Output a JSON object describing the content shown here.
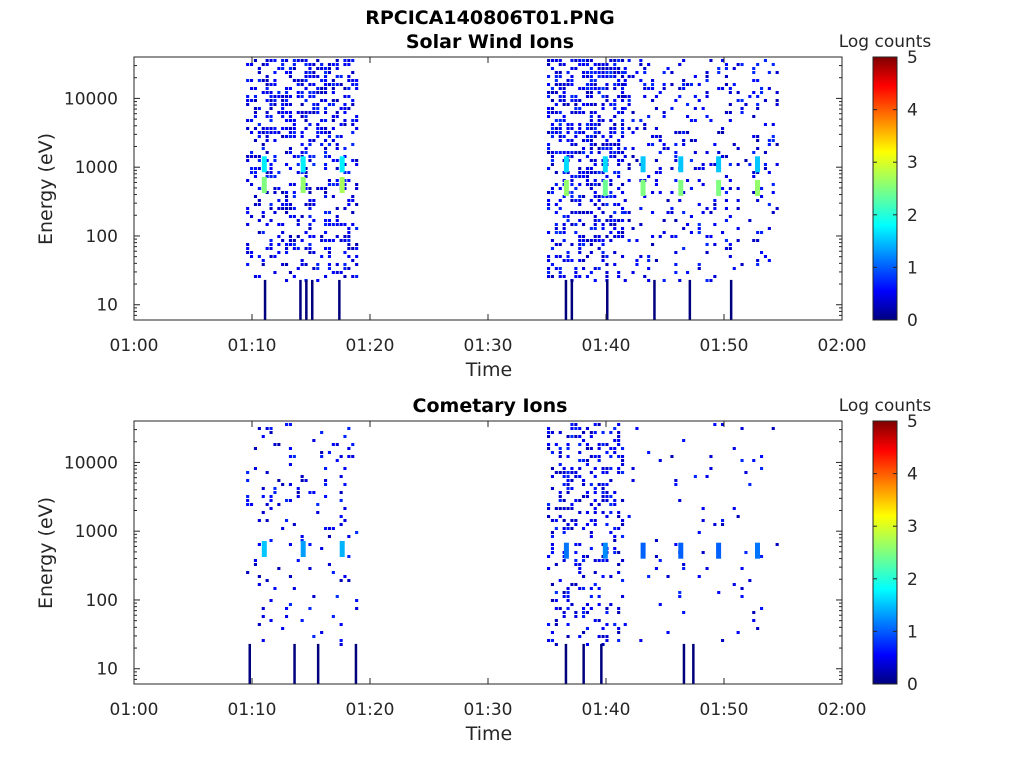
{
  "figure": {
    "title": "RPCICA140806T01.PNG"
  },
  "chart_data": [
    {
      "type": "heatmap",
      "title": "Solar Wind Ions",
      "xlabel": "Time",
      "ylabel": "Energy (eV)",
      "x_range": [
        "01:00",
        "02:00"
      ],
      "x_ticks": [
        "01:00",
        "01:10",
        "01:20",
        "01:30",
        "01:40",
        "01:50",
        "02:00"
      ],
      "y_scale": "log",
      "y_range": [
        6,
        40000
      ],
      "y_ticks": [
        "10",
        "100",
        "1000",
        "10000"
      ],
      "colorbar": {
        "label": "Log counts",
        "range": [
          0,
          5
        ],
        "ticks": [
          "0",
          "1",
          "2",
          "3",
          "4",
          "5"
        ],
        "colormap": "jet"
      },
      "bursts": [
        {
          "start_min": 9.5,
          "end_min": 18.8,
          "density": 0.45
        },
        {
          "start_min": 35.0,
          "end_min": 41.5,
          "density": 0.6
        },
        {
          "start_min": 41.5,
          "end_min": 54.5,
          "density": 0.18
        }
      ],
      "peaks": [
        {
          "time_min": 11.0,
          "energy_eV": 550,
          "log_counts": 2.5
        },
        {
          "time_min": 11.0,
          "energy_eV": 1100,
          "log_counts": 1.8
        },
        {
          "time_min": 14.3,
          "energy_eV": 550,
          "log_counts": 2.6
        },
        {
          "time_min": 14.3,
          "energy_eV": 1100,
          "log_counts": 1.8
        },
        {
          "time_min": 17.6,
          "energy_eV": 550,
          "log_counts": 2.7
        },
        {
          "time_min": 17.6,
          "energy_eV": 1100,
          "log_counts": 1.8
        },
        {
          "time_min": 36.6,
          "energy_eV": 500,
          "log_counts": 2.6
        },
        {
          "time_min": 36.6,
          "energy_eV": 1100,
          "log_counts": 1.7
        },
        {
          "time_min": 39.9,
          "energy_eV": 500,
          "log_counts": 2.4
        },
        {
          "time_min": 39.9,
          "energy_eV": 1100,
          "log_counts": 1.7
        },
        {
          "time_min": 43.1,
          "energy_eV": 500,
          "log_counts": 2.5
        },
        {
          "time_min": 43.1,
          "energy_eV": 1100,
          "log_counts": 1.6
        },
        {
          "time_min": 46.3,
          "energy_eV": 500,
          "log_counts": 2.5
        },
        {
          "time_min": 46.3,
          "energy_eV": 1100,
          "log_counts": 1.6
        },
        {
          "time_min": 49.5,
          "energy_eV": 500,
          "log_counts": 2.5
        },
        {
          "time_min": 49.5,
          "energy_eV": 1100,
          "log_counts": 1.6
        },
        {
          "time_min": 52.8,
          "energy_eV": 500,
          "log_counts": 2.6
        },
        {
          "time_min": 52.8,
          "energy_eV": 1100,
          "log_counts": 1.6
        }
      ],
      "low_energy_streaks": [
        {
          "time_min": 11.0,
          "energy_eV": 10
        },
        {
          "time_min": 14.0,
          "energy_eV": 10
        },
        {
          "time_min": 14.5,
          "energy_eV": 10
        },
        {
          "time_min": 15.0,
          "energy_eV": 10
        },
        {
          "time_min": 17.3,
          "energy_eV": 10
        },
        {
          "time_min": 36.5,
          "energy_eV": 10
        },
        {
          "time_min": 37.0,
          "energy_eV": 10
        },
        {
          "time_min": 40.0,
          "energy_eV": 10
        },
        {
          "time_min": 44.0,
          "energy_eV": 10
        },
        {
          "time_min": 47.0,
          "energy_eV": 10
        },
        {
          "time_min": 50.5,
          "energy_eV": 10
        }
      ]
    },
    {
      "type": "heatmap",
      "title": "Cometary Ions",
      "xlabel": "Time",
      "ylabel": "Energy (eV)",
      "x_range": [
        "01:00",
        "02:00"
      ],
      "x_ticks": [
        "01:00",
        "01:10",
        "01:20",
        "01:30",
        "01:40",
        "01:50",
        "02:00"
      ],
      "y_scale": "log",
      "y_range": [
        6,
        40000
      ],
      "y_ticks": [
        "10",
        "100",
        "1000",
        "10000"
      ],
      "colorbar": {
        "label": "Log counts",
        "range": [
          0,
          5
        ],
        "ticks": [
          "0",
          "1",
          "2",
          "3",
          "4",
          "5"
        ],
        "colormap": "jet"
      },
      "bursts": [
        {
          "start_min": 9.5,
          "end_min": 18.8,
          "density": 0.12
        },
        {
          "start_min": 35.0,
          "end_min": 41.5,
          "density": 0.35
        },
        {
          "start_min": 41.5,
          "end_min": 54.5,
          "density": 0.04
        }
      ],
      "peaks": [
        {
          "time_min": 11.0,
          "energy_eV": 550,
          "log_counts": 1.6
        },
        {
          "time_min": 14.3,
          "energy_eV": 550,
          "log_counts": 1.4
        },
        {
          "time_min": 17.6,
          "energy_eV": 550,
          "log_counts": 1.5
        },
        {
          "time_min": 36.6,
          "energy_eV": 520,
          "log_counts": 1.2
        },
        {
          "time_min": 39.9,
          "energy_eV": 520,
          "log_counts": 1.3
        },
        {
          "time_min": 43.1,
          "energy_eV": 520,
          "log_counts": 1.1
        },
        {
          "time_min": 46.3,
          "energy_eV": 520,
          "log_counts": 1.1
        },
        {
          "time_min": 49.5,
          "energy_eV": 520,
          "log_counts": 1.1
        },
        {
          "time_min": 52.8,
          "energy_eV": 520,
          "log_counts": 1.2
        }
      ],
      "low_energy_streaks": [
        {
          "time_min": 9.7,
          "energy_eV": 10
        },
        {
          "time_min": 13.5,
          "energy_eV": 10
        },
        {
          "time_min": 15.5,
          "energy_eV": 10
        },
        {
          "time_min": 18.7,
          "energy_eV": 10
        },
        {
          "time_min": 36.5,
          "energy_eV": 10
        },
        {
          "time_min": 38.0,
          "energy_eV": 10
        },
        {
          "time_min": 39.5,
          "energy_eV": 10
        },
        {
          "time_min": 46.5,
          "energy_eV": 10
        },
        {
          "time_min": 47.3,
          "energy_eV": 10
        }
      ]
    }
  ]
}
